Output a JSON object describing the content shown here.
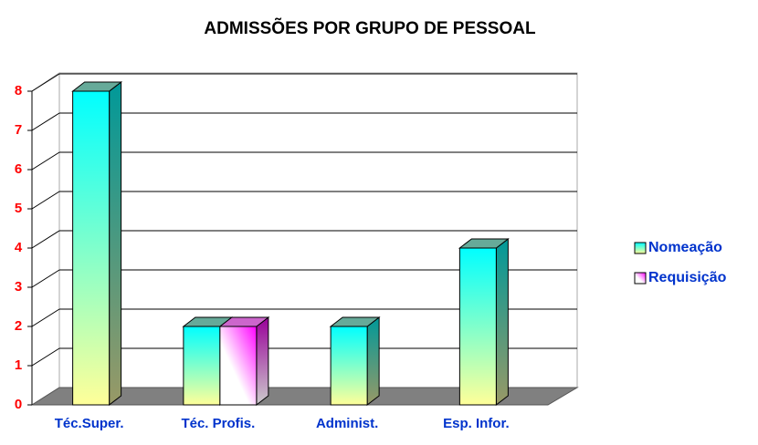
{
  "chart_data": {
    "type": "bar3d",
    "title": "ADMISSÕES POR GRUPO DE PESSOAL",
    "categories": [
      "Téc.Super.",
      "Téc. Profis.",
      "Administ.",
      "Esp. Infor."
    ],
    "series": [
      {
        "name": "Nomeação",
        "color": "#00ffff",
        "values": [
          8,
          2,
          2,
          4
        ]
      },
      {
        "name": "Requisição",
        "color": "#ff00ff",
        "values": [
          null,
          2,
          null,
          null
        ]
      }
    ],
    "ylim": [
      0,
      8
    ],
    "yticks": [
      0,
      1,
      2,
      3,
      4,
      5,
      6,
      7,
      8
    ],
    "grid": true,
    "legend": "right"
  }
}
